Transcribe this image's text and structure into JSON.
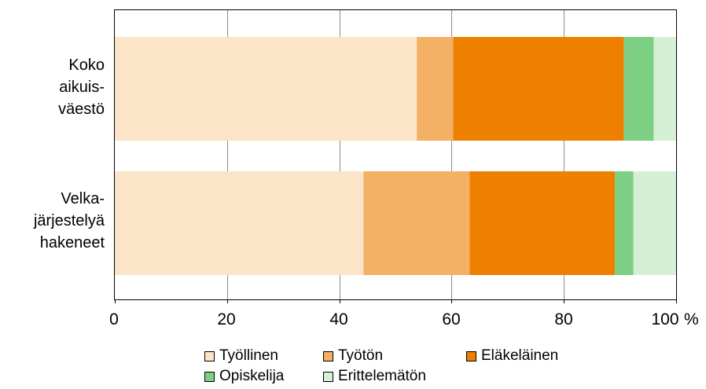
{
  "chart_data": {
    "type": "bar",
    "orientation": "horizontal",
    "stacked": true,
    "categories": [
      [
        "Koko",
        "aikuis-",
        "väestö"
      ],
      [
        "Velka-",
        "järjestelyä",
        "hakeneet"
      ]
    ],
    "series": [
      {
        "name": "Työllinen",
        "color": "#fce4c8",
        "values": [
          53.8,
          44.3
        ]
      },
      {
        "name": "Työtön",
        "color": "#f4b064",
        "values": [
          6.5,
          18.9
        ]
      },
      {
        "name": "Eläkeläinen",
        "color": "#ee8000",
        "values": [
          30.4,
          25.9
        ]
      },
      {
        "name": "Opiskelija",
        "color": "#7dcf84",
        "values": [
          5.3,
          3.3
        ]
      },
      {
        "name": "Erittelemätön",
        "color": "#d5efd5",
        "values": [
          4.0,
          7.6
        ]
      }
    ],
    "xlim": [
      0,
      100
    ],
    "xticks": [
      "0",
      "20",
      "40",
      "60",
      "80",
      "100"
    ],
    "unit": "%",
    "grid": true,
    "legend_placement": "bottom"
  }
}
